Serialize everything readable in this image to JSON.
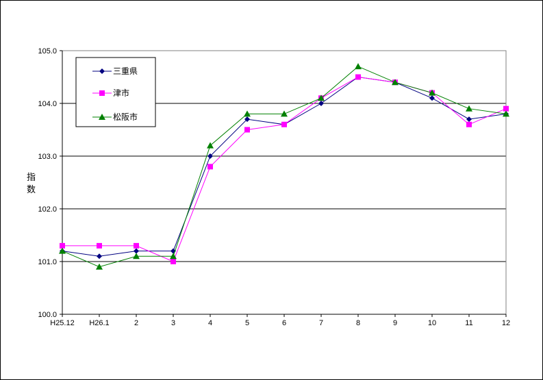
{
  "chart_data": {
    "type": "line",
    "title": "",
    "xlabel": "",
    "ylabel": "指数",
    "categories": [
      "H25.12",
      "H26.1",
      "2",
      "3",
      "4",
      "5",
      "6",
      "7",
      "8",
      "9",
      "10",
      "11",
      "12"
    ],
    "ylim": [
      100.0,
      105.0
    ],
    "yticks": [
      "100.0",
      "101.0",
      "102.0",
      "103.0",
      "104.0",
      "105.0"
    ],
    "grid": true,
    "legend_position": "top-left",
    "series": [
      {
        "name": "三重県",
        "color": "#000080",
        "marker": "diamond",
        "values": [
          101.2,
          101.1,
          101.2,
          101.2,
          103.0,
          103.7,
          103.6,
          104.0,
          104.5,
          104.4,
          104.1,
          103.7,
          103.8
        ]
      },
      {
        "name": "津市",
        "color": "#FF00FF",
        "marker": "square",
        "values": [
          101.3,
          101.3,
          101.3,
          101.0,
          102.8,
          103.5,
          103.6,
          104.1,
          104.5,
          104.4,
          104.2,
          103.6,
          103.9
        ]
      },
      {
        "name": "松阪市",
        "color": "#008000",
        "marker": "triangle",
        "values": [
          101.2,
          100.9,
          101.1,
          101.1,
          103.2,
          103.8,
          103.8,
          104.1,
          104.7,
          104.4,
          104.2,
          103.9,
          103.8
        ]
      }
    ]
  }
}
